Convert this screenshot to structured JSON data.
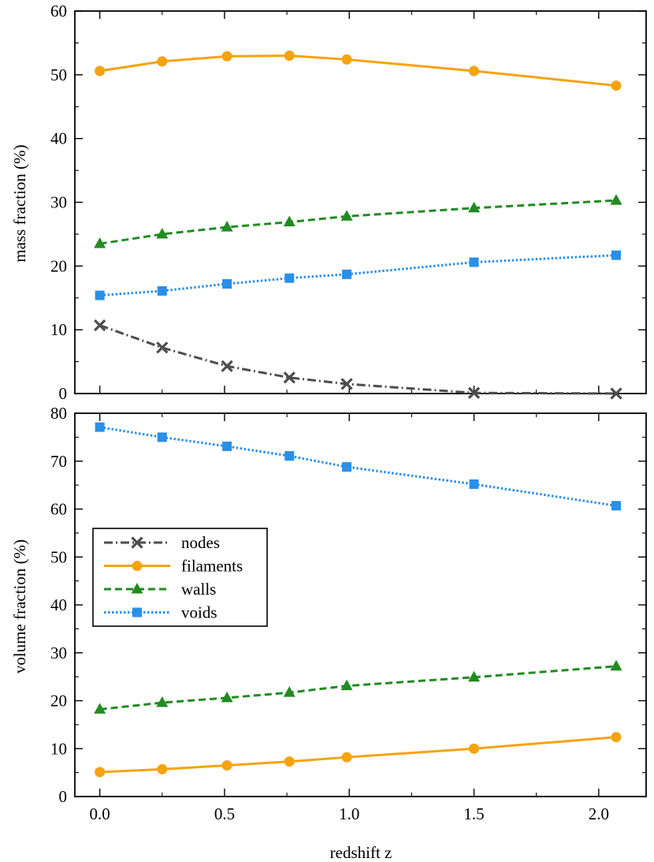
{
  "chart_data": [
    {
      "type": "line",
      "ylabel": "mass fraction (%)",
      "ylim": [
        0,
        60
      ],
      "yticks": [
        0,
        10,
        20,
        30,
        40,
        50,
        60
      ],
      "xlim": [
        -0.1,
        2.19
      ],
      "xticks": [
        0.0,
        0.5,
        1.0,
        1.5,
        2.0
      ],
      "x": [
        0.0,
        0.25,
        0.51,
        0.76,
        0.99,
        1.5,
        2.07
      ],
      "series": [
        {
          "name": "nodes",
          "color": "#4d4d4d",
          "marker": "x",
          "dash": "dashdot",
          "values": [
            10.7,
            7.2,
            4.3,
            2.5,
            1.5,
            0.1,
            0.0
          ]
        },
        {
          "name": "filaments",
          "color": "#f5a30f",
          "marker": "circle",
          "dash": "solid",
          "values": [
            50.6,
            52.1,
            52.9,
            53.0,
            52.4,
            50.6,
            48.3
          ]
        },
        {
          "name": "walls",
          "color": "#228b22",
          "marker": "triangle",
          "dash": "dashed",
          "values": [
            23.5,
            25.0,
            26.1,
            26.9,
            27.8,
            29.1,
            30.3
          ]
        },
        {
          "name": "voids",
          "color": "#2a8fe8",
          "marker": "square",
          "dash": "dotted",
          "values": [
            15.4,
            16.1,
            17.2,
            18.1,
            18.7,
            20.6,
            21.7
          ]
        }
      ]
    },
    {
      "type": "line",
      "ylabel": "volume fraction (%)",
      "xlabel": "redshift z",
      "ylim": [
        0,
        80
      ],
      "yticks": [
        0,
        10,
        20,
        30,
        40,
        50,
        60,
        70,
        80
      ],
      "xlim": [
        -0.1,
        2.19
      ],
      "xticks": [
        0.0,
        0.5,
        1.0,
        1.5,
        2.0
      ],
      "xticklabels": [
        "0.0",
        "0.5",
        "1.0",
        "1.5",
        "2.0"
      ],
      "x": [
        0.0,
        0.25,
        0.51,
        0.76,
        0.99,
        1.5,
        2.07
      ],
      "series": [
        {
          "name": "filaments",
          "color": "#f5a30f",
          "marker": "circle",
          "dash": "solid",
          "values": [
            5.1,
            5.7,
            6.5,
            7.3,
            8.2,
            10.0,
            12.4
          ]
        },
        {
          "name": "walls",
          "color": "#228b22",
          "marker": "triangle",
          "dash": "dashed",
          "values": [
            18.2,
            19.6,
            20.6,
            21.7,
            23.1,
            24.9,
            27.2
          ]
        },
        {
          "name": "voids",
          "color": "#2a8fe8",
          "marker": "square",
          "dash": "dotted",
          "values": [
            77.1,
            75.0,
            73.1,
            71.1,
            68.8,
            65.2,
            60.7
          ]
        }
      ],
      "legend": {
        "placement": "center-left",
        "entries": [
          {
            "name": "nodes",
            "color": "#4d4d4d",
            "marker": "x",
            "dash": "dashdot"
          },
          {
            "name": "filaments",
            "color": "#f5a30f",
            "marker": "circle",
            "dash": "solid"
          },
          {
            "name": "walls",
            "color": "#228b22",
            "marker": "triangle",
            "dash": "dashed"
          },
          {
            "name": "voids",
            "color": "#2a8fe8",
            "marker": "square",
            "dash": "dotted"
          }
        ]
      }
    }
  ]
}
